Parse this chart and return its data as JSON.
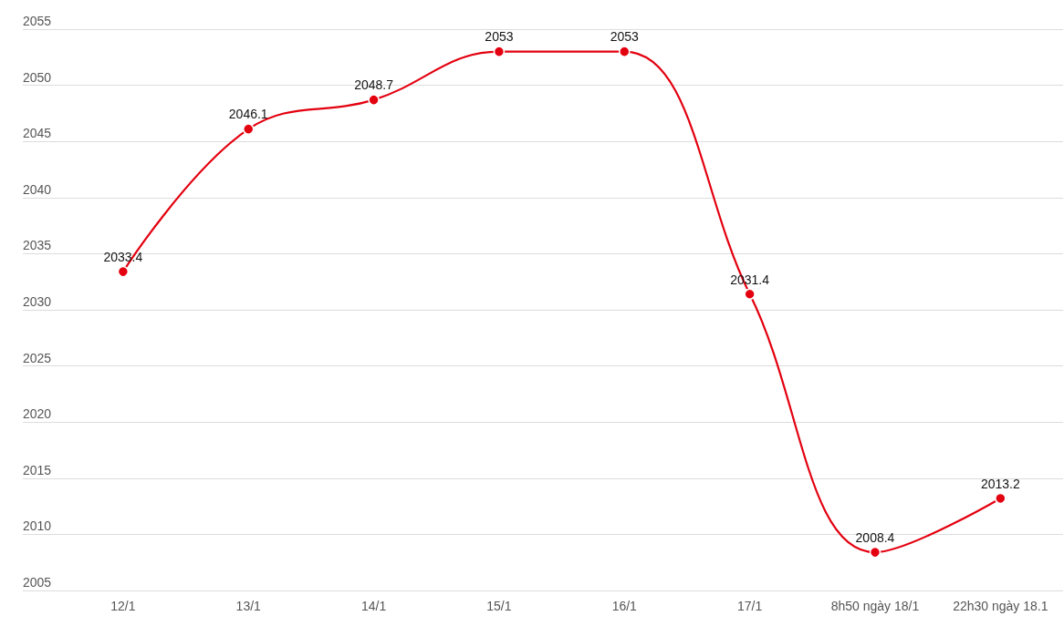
{
  "chart_data": {
    "type": "line",
    "categories": [
      "12/1",
      "13/1",
      "14/1",
      "15/1",
      "16/1",
      "17/1",
      "8h50 ngày 18/1",
      "22h30 ngày 18.1"
    ],
    "series": [
      {
        "color": "#e3000f",
        "values": [
          2033.4,
          2046.1,
          2048.7,
          2053,
          2053,
          2031.4,
          2008.4,
          2013.2
        ]
      }
    ],
    "ylim": [
      2005,
      2055
    ],
    "yticks": [
      2005,
      2010,
      2015,
      2020,
      2025,
      2030,
      2035,
      2040,
      2045,
      2050,
      2055
    ],
    "grid": "y",
    "marker": "circle",
    "line_style": "solid",
    "data_labels": true
  }
}
